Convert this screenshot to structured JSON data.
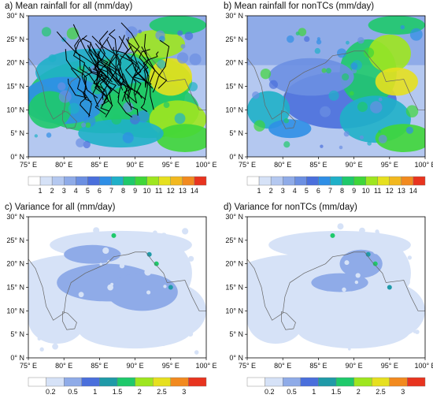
{
  "panels": [
    {
      "letter": "a)",
      "title": "Mean rainfall for all (mm/day)",
      "kind": "mean",
      "tracks": true
    },
    {
      "letter": "b)",
      "title": "Mean rainfall for nonTCs (mm/day)",
      "kind": "mean",
      "tracks": false
    },
    {
      "letter": "c)",
      "title": "Variance for all (mm/day)",
      "kind": "variance",
      "tracks": false
    },
    {
      "letter": "d)",
      "title": "Variance for nonTCs (mm/day)",
      "kind": "variance",
      "tracks": false
    }
  ],
  "chart_data": {
    "type": "heatmap",
    "x_ticks": [
      "75° E",
      "80° E",
      "85° E",
      "90° E",
      "95° E",
      "100° E"
    ],
    "y_ticks": [
      "0° N",
      "5° N",
      "10° N",
      "15° N",
      "20° N",
      "25° N",
      "30° N"
    ],
    "xlim": [
      75,
      100
    ],
    "ylim": [
      0,
      30
    ],
    "mean_colorbar": {
      "labels": [
        "1",
        "2",
        "3",
        "4",
        "5",
        "6",
        "7",
        "8",
        "9",
        "10",
        "11",
        "12",
        "13",
        "14"
      ],
      "colors": [
        "#ffffff",
        "#d6e2f7",
        "#b4c8f0",
        "#8fabe8",
        "#6b8fe2",
        "#4a6fdc",
        "#2f8fe6",
        "#1fb0c8",
        "#1fc96b",
        "#3fd639",
        "#9ee61f",
        "#e6e01f",
        "#f2b81f",
        "#f28a1f",
        "#e8341f"
      ]
    },
    "variance_colorbar": {
      "labels": [
        "0.2",
        "0.5",
        "1",
        "1.5",
        "2",
        "2.5",
        "3"
      ],
      "colors": [
        "#ffffff",
        "#d6e2f7",
        "#8fabe8",
        "#4a6fdc",
        "#1f9aa8",
        "#1fc96b",
        "#9ee61f",
        "#e6e01f",
        "#f28a1f",
        "#e8341f"
      ]
    }
  }
}
